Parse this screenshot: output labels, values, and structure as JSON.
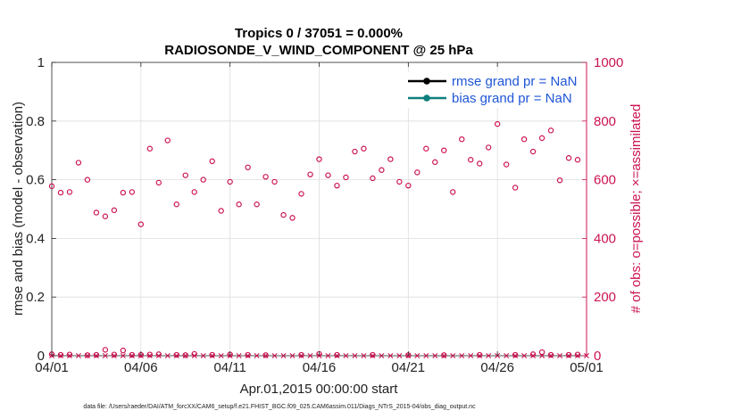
{
  "chart_data": {
    "type": "scatter",
    "title": "Tropics 0 / 37051 = 0.000%",
    "subtitle": "RADIOSONDE_V_WIND_COMPONENT @ 25 hPa",
    "xlabel": "Apr.01,2015 00:00:00 start",
    "ylabel": "rmse and bias (model - observation)",
    "y2label": "# of obs: o=possible; ×=assimilated",
    "footer": "data file: /Users/raeder/DAI/ATM_forcXX/CAM6_setup/f.e21.FHIST_BGC.f09_025.CAM6assim.011/Diags_NTrS_2015-04/obs_diag_output.nc",
    "xlim": [
      0,
      30
    ],
    "ylim": [
      0,
      1
    ],
    "y2lim": [
      0,
      1000
    ],
    "x_ticks": [
      0,
      5,
      10,
      15,
      20,
      25,
      30
    ],
    "x_tick_labels": [
      "04/01",
      "04/06",
      "04/11",
      "04/16",
      "04/21",
      "04/26",
      "05/01"
    ],
    "y_tick_labels": [
      "0",
      "0.2",
      "0.4",
      "0.6",
      "0.8",
      "1"
    ],
    "y2_tick_labels": [
      "0",
      "200",
      "400",
      "600",
      "800",
      "1000"
    ],
    "grid": true,
    "legend_position": "top-right",
    "legend": [
      {
        "label": "rmse grand pr = NaN",
        "color": "#000000"
      },
      {
        "label": "bias grand pr = NaN",
        "color": "#0f7f7f"
      }
    ],
    "colors": {
      "obs_possible": "#cc1452",
      "obs_assimilated": "#cc1452",
      "axis": "#262626",
      "grid": "#dedede"
    },
    "series": [
      {
        "name": "obs possible (upper)",
        "axis": "right",
        "marker": "circle",
        "x": [
          0.0,
          0.5,
          1.0,
          1.5,
          2.0,
          2.5,
          3.0,
          3.5,
          4.0,
          4.5,
          5.0,
          5.5,
          6.0,
          6.5,
          7.0,
          7.5,
          8.0,
          8.5,
          9.0,
          9.5,
          10.0,
          10.5,
          11.0,
          11.5,
          12.0,
          12.5,
          13.0,
          13.5,
          14.0,
          14.5,
          15.0,
          15.5,
          16.0,
          16.5,
          17.0,
          17.5,
          18.0,
          18.5,
          19.0,
          19.5,
          20.0,
          20.5,
          21.0,
          21.5,
          22.0,
          22.5,
          23.0,
          23.5,
          24.0,
          24.5,
          25.0,
          25.5,
          26.0,
          26.5,
          27.0,
          27.5,
          28.0,
          28.5,
          29.0,
          29.5
        ],
        "values": [
          578,
          556,
          558,
          658,
          600,
          488,
          475,
          496,
          556,
          558,
          448,
          706,
          590,
          734,
          516,
          615,
          558,
          600,
          663,
          494,
          593,
          516,
          642,
          516,
          610,
          593,
          480,
          470,
          552,
          618,
          670,
          615,
          580,
          608,
          696,
          706,
          605,
          633,
          670,
          593,
          580,
          625,
          706,
          660,
          700,
          558,
          738,
          668,
          655,
          710,
          790,
          652,
          573,
          738,
          696,
          742,
          768,
          598,
          674,
          668
        ]
      },
      {
        "name": "obs possible (low)",
        "axis": "right",
        "marker": "circle",
        "x": [
          0.0,
          0.5,
          1.0,
          2.0,
          2.5,
          3.0,
          3.5,
          4.0,
          4.5,
          5.0,
          5.5,
          6.0,
          7.0,
          7.5,
          8.0,
          9.0,
          10.0,
          11.0,
          12.0,
          14.0,
          15.0,
          16.0,
          18.0,
          20.0,
          22.0,
          24.0,
          26.0,
          27.0,
          27.5,
          28.0,
          29.0,
          29.5
        ],
        "values": [
          5,
          3,
          4,
          2,
          3,
          20,
          4,
          18,
          3,
          3,
          4,
          5,
          3,
          2,
          6,
          3,
          4,
          3,
          2,
          3,
          6,
          3,
          3,
          2,
          2,
          3,
          3,
          5,
          12,
          3,
          3,
          4
        ]
      },
      {
        "name": "obs assimilated",
        "axis": "right",
        "marker": "x",
        "x": [
          0.0,
          0.5,
          1.0,
          1.5,
          2.0,
          2.5,
          3.0,
          3.5,
          4.0,
          4.5,
          5.0,
          5.5,
          6.0,
          6.5,
          7.0,
          7.5,
          8.0,
          8.5,
          9.0,
          9.5,
          10.0,
          10.5,
          11.0,
          11.5,
          12.0,
          12.5,
          13.0,
          13.5,
          14.0,
          14.5,
          15.0,
          15.5,
          16.0,
          16.5,
          17.0,
          17.5,
          18.0,
          18.5,
          19.0,
          19.5,
          20.0,
          20.5,
          21.0,
          21.5,
          22.0,
          22.5,
          23.0,
          23.5,
          24.0,
          24.5,
          25.0,
          25.5,
          26.0,
          26.5,
          27.0,
          27.5,
          28.0,
          28.5,
          29.0,
          29.5,
          30.0
        ],
        "values": [
          0,
          0,
          0,
          0,
          0,
          0,
          0,
          0,
          0,
          0,
          0,
          0,
          0,
          0,
          0,
          0,
          0,
          0,
          0,
          0,
          0,
          0,
          0,
          0,
          0,
          0,
          0,
          0,
          0,
          0,
          0,
          0,
          0,
          0,
          0,
          0,
          0,
          0,
          0,
          0,
          0,
          0,
          0,
          0,
          0,
          0,
          0,
          0,
          0,
          0,
          0,
          0,
          0,
          0,
          0,
          0,
          0,
          0,
          0,
          0,
          0
        ]
      }
    ]
  }
}
